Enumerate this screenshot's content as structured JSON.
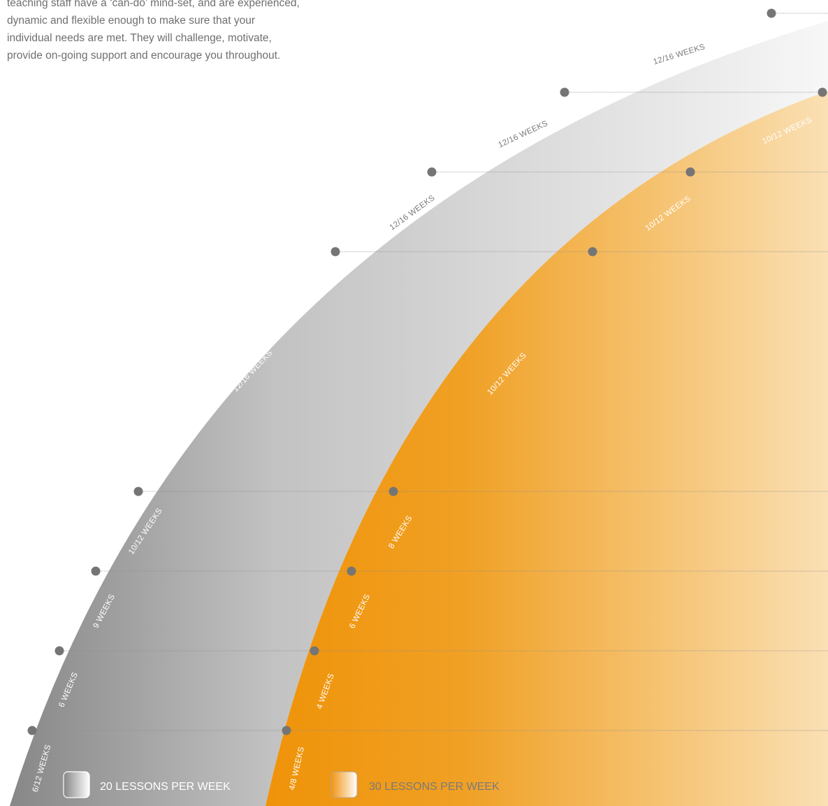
{
  "intro": {
    "lines": [
      "teaching staff have a ‘can-do’ mind-set, and are experienced,",
      "dynamic and flexible enough to make sure that your",
      "individual needs are met. They will challenge, motivate,",
      "provide on-going support and encourage you throughout."
    ]
  },
  "programs": [
    {
      "id": "twenty",
      "legend": "20 LESSONS PER WEEK",
      "stages": [
        "6/12 WEEKS",
        "6 WEEKS",
        "9 WEEKS",
        "10/12 WEEKS",
        "12/16 WEEKS",
        "12/16 WEEKS",
        "12/16 WEEKS",
        "12/16 WEEKS"
      ]
    },
    {
      "id": "thirty",
      "legend": "30 LESSONS PER WEEK",
      "stages": [
        "4/8 WEEKS",
        "4 WEEKS",
        "6 WEEKS",
        "8 WEEKS",
        "10/12 WEEKS",
        "10/12 WEEKS",
        "10/12 WEEKS"
      ]
    }
  ],
  "colors": {
    "gray_dark": "#858585",
    "gray_light": "#f7f7f7",
    "orange_dark": "#ef9309",
    "orange_light": "#fae0b4",
    "marker": "#757575",
    "label_on_dark": "#ffffff",
    "label_on_light": "#7a7a7a",
    "guide_line": "#8d8d8d"
  }
}
